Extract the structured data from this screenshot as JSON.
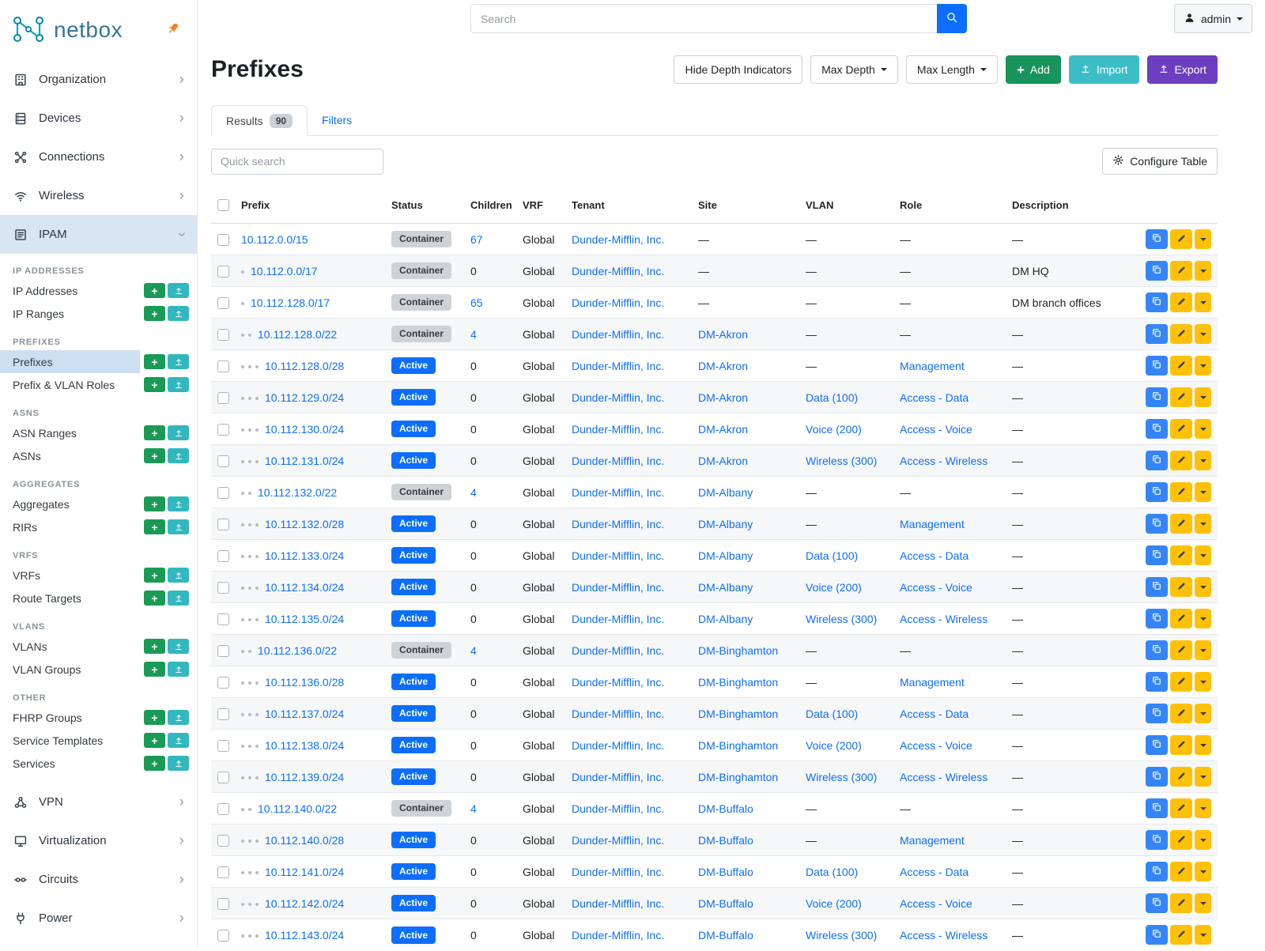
{
  "topbar": {
    "search_placeholder": "Search",
    "user_label": "admin"
  },
  "sidebar": {
    "brand": "netbox",
    "nav_top": [
      {
        "label": "Organization",
        "icon": "building-icon"
      },
      {
        "label": "Devices",
        "icon": "rack-icon"
      },
      {
        "label": "Connections",
        "icon": "cable-icon"
      },
      {
        "label": "Wireless",
        "icon": "wifi-icon"
      },
      {
        "label": "IPAM",
        "icon": "ipam-icon",
        "active": true,
        "expanded": true
      }
    ],
    "sections": [
      {
        "header": "IP ADDRESSES",
        "items": [
          {
            "label": "IP Addresses"
          },
          {
            "label": "IP Ranges"
          }
        ]
      },
      {
        "header": "PREFIXES",
        "items": [
          {
            "label": "Prefixes",
            "selected": true
          },
          {
            "label": "Prefix & VLAN Roles"
          }
        ]
      },
      {
        "header": "ASNS",
        "items": [
          {
            "label": "ASN Ranges"
          },
          {
            "label": "ASNs"
          }
        ]
      },
      {
        "header": "AGGREGATES",
        "items": [
          {
            "label": "Aggregates"
          },
          {
            "label": "RIRs"
          }
        ]
      },
      {
        "header": "VRFS",
        "items": [
          {
            "label": "VRFs"
          },
          {
            "label": "Route Targets"
          }
        ]
      },
      {
        "header": "VLANS",
        "items": [
          {
            "label": "VLANs"
          },
          {
            "label": "VLAN Groups"
          }
        ]
      },
      {
        "header": "OTHER",
        "items": [
          {
            "label": "FHRP Groups"
          },
          {
            "label": "Service Templates"
          },
          {
            "label": "Services"
          }
        ]
      }
    ],
    "nav_bottom": [
      {
        "label": "VPN",
        "icon": "vpn-icon"
      },
      {
        "label": "Virtualization",
        "icon": "virtualization-icon"
      },
      {
        "label": "Circuits",
        "icon": "circuits-icon"
      },
      {
        "label": "Power",
        "icon": "power-icon"
      }
    ]
  },
  "page": {
    "title": "Prefixes",
    "actions": {
      "hide_depth": "Hide Depth Indicators",
      "max_depth": "Max Depth",
      "max_length": "Max Length",
      "add": "Add",
      "import": "Import",
      "export": "Export"
    },
    "tabs": {
      "results": "Results",
      "results_count": "90",
      "filters": "Filters"
    },
    "quick_search_placeholder": "Quick search",
    "configure_table": "Configure Table"
  },
  "colors": {
    "accent_blue": "#0d6efd",
    "success_green": "#18935c",
    "info_teal": "#3cbdc6",
    "purple": "#6b3fc0",
    "warning_yellow": "#ffc107",
    "active_nav_bg": "#d8e5f2"
  },
  "table": {
    "columns": [
      "Prefix",
      "Status",
      "Children",
      "VRF",
      "Tenant",
      "Site",
      "VLAN",
      "Role",
      "Description"
    ],
    "empty_value": "—",
    "rows": [
      {
        "depth": 0,
        "prefix": "10.112.0.0/15",
        "status": "Container",
        "children": "67",
        "vrf": "Global",
        "tenant": "Dunder-Mifflin, Inc.",
        "site": "",
        "vlan": "",
        "role": "",
        "description": ""
      },
      {
        "depth": 1,
        "prefix": "10.112.0.0/17",
        "status": "Container",
        "children": "0",
        "vrf": "Global",
        "tenant": "Dunder-Mifflin, Inc.",
        "site": "",
        "vlan": "",
        "role": "",
        "description": "DM HQ"
      },
      {
        "depth": 1,
        "prefix": "10.112.128.0/17",
        "status": "Container",
        "children": "65",
        "vrf": "Global",
        "tenant": "Dunder-Mifflin, Inc.",
        "site": "",
        "vlan": "",
        "role": "",
        "description": "DM branch offices"
      },
      {
        "depth": 2,
        "prefix": "10.112.128.0/22",
        "status": "Container",
        "children": "4",
        "vrf": "Global",
        "tenant": "Dunder-Mifflin, Inc.",
        "site": "DM-Akron",
        "vlan": "",
        "role": "",
        "description": ""
      },
      {
        "depth": 3,
        "prefix": "10.112.128.0/28",
        "status": "Active",
        "children": "0",
        "vrf": "Global",
        "tenant": "Dunder-Mifflin, Inc.",
        "site": "DM-Akron",
        "vlan": "",
        "role": "Management",
        "description": ""
      },
      {
        "depth": 3,
        "prefix": "10.112.129.0/24",
        "status": "Active",
        "children": "0",
        "vrf": "Global",
        "tenant": "Dunder-Mifflin, Inc.",
        "site": "DM-Akron",
        "vlan": "Data (100)",
        "role": "Access - Data",
        "description": ""
      },
      {
        "depth": 3,
        "prefix": "10.112.130.0/24",
        "status": "Active",
        "children": "0",
        "vrf": "Global",
        "tenant": "Dunder-Mifflin, Inc.",
        "site": "DM-Akron",
        "vlan": "Voice (200)",
        "role": "Access - Voice",
        "description": ""
      },
      {
        "depth": 3,
        "prefix": "10.112.131.0/24",
        "status": "Active",
        "children": "0",
        "vrf": "Global",
        "tenant": "Dunder-Mifflin, Inc.",
        "site": "DM-Akron",
        "vlan": "Wireless (300)",
        "role": "Access - Wireless",
        "description": ""
      },
      {
        "depth": 2,
        "prefix": "10.112.132.0/22",
        "status": "Container",
        "children": "4",
        "vrf": "Global",
        "tenant": "Dunder-Mifflin, Inc.",
        "site": "DM-Albany",
        "vlan": "",
        "role": "",
        "description": ""
      },
      {
        "depth": 3,
        "prefix": "10.112.132.0/28",
        "status": "Active",
        "children": "0",
        "vrf": "Global",
        "tenant": "Dunder-Mifflin, Inc.",
        "site": "DM-Albany",
        "vlan": "",
        "role": "Management",
        "description": ""
      },
      {
        "depth": 3,
        "prefix": "10.112.133.0/24",
        "status": "Active",
        "children": "0",
        "vrf": "Global",
        "tenant": "Dunder-Mifflin, Inc.",
        "site": "DM-Albany",
        "vlan": "Data (100)",
        "role": "Access - Data",
        "description": ""
      },
      {
        "depth": 3,
        "prefix": "10.112.134.0/24",
        "status": "Active",
        "children": "0",
        "vrf": "Global",
        "tenant": "Dunder-Mifflin, Inc.",
        "site": "DM-Albany",
        "vlan": "Voice (200)",
        "role": "Access - Voice",
        "description": ""
      },
      {
        "depth": 3,
        "prefix": "10.112.135.0/24",
        "status": "Active",
        "children": "0",
        "vrf": "Global",
        "tenant": "Dunder-Mifflin, Inc.",
        "site": "DM-Albany",
        "vlan": "Wireless (300)",
        "role": "Access - Wireless",
        "description": ""
      },
      {
        "depth": 2,
        "prefix": "10.112.136.0/22",
        "status": "Container",
        "children": "4",
        "vrf": "Global",
        "tenant": "Dunder-Mifflin, Inc.",
        "site": "DM-Binghamton",
        "vlan": "",
        "role": "",
        "description": ""
      },
      {
        "depth": 3,
        "prefix": "10.112.136.0/28",
        "status": "Active",
        "children": "0",
        "vrf": "Global",
        "tenant": "Dunder-Mifflin, Inc.",
        "site": "DM-Binghamton",
        "vlan": "",
        "role": "Management",
        "description": ""
      },
      {
        "depth": 3,
        "prefix": "10.112.137.0/24",
        "status": "Active",
        "children": "0",
        "vrf": "Global",
        "tenant": "Dunder-Mifflin, Inc.",
        "site": "DM-Binghamton",
        "vlan": "Data (100)",
        "role": "Access - Data",
        "description": ""
      },
      {
        "depth": 3,
        "prefix": "10.112.138.0/24",
        "status": "Active",
        "children": "0",
        "vrf": "Global",
        "tenant": "Dunder-Mifflin, Inc.",
        "site": "DM-Binghamton",
        "vlan": "Voice (200)",
        "role": "Access - Voice",
        "description": ""
      },
      {
        "depth": 3,
        "prefix": "10.112.139.0/24",
        "status": "Active",
        "children": "0",
        "vrf": "Global",
        "tenant": "Dunder-Mifflin, Inc.",
        "site": "DM-Binghamton",
        "vlan": "Wireless (300)",
        "role": "Access - Wireless",
        "description": ""
      },
      {
        "depth": 2,
        "prefix": "10.112.140.0/22",
        "status": "Container",
        "children": "4",
        "vrf": "Global",
        "tenant": "Dunder-Mifflin, Inc.",
        "site": "DM-Buffalo",
        "vlan": "",
        "role": "",
        "description": ""
      },
      {
        "depth": 3,
        "prefix": "10.112.140.0/28",
        "status": "Active",
        "children": "0",
        "vrf": "Global",
        "tenant": "Dunder-Mifflin, Inc.",
        "site": "DM-Buffalo",
        "vlan": "",
        "role": "Management",
        "description": ""
      },
      {
        "depth": 3,
        "prefix": "10.112.141.0/24",
        "status": "Active",
        "children": "0",
        "vrf": "Global",
        "tenant": "Dunder-Mifflin, Inc.",
        "site": "DM-Buffalo",
        "vlan": "Data (100)",
        "role": "Access - Data",
        "description": ""
      },
      {
        "depth": 3,
        "prefix": "10.112.142.0/24",
        "status": "Active",
        "children": "0",
        "vrf": "Global",
        "tenant": "Dunder-Mifflin, Inc.",
        "site": "DM-Buffalo",
        "vlan": "Voice (200)",
        "role": "Access - Voice",
        "description": ""
      },
      {
        "depth": 3,
        "prefix": "10.112.143.0/24",
        "status": "Active",
        "children": "0",
        "vrf": "Global",
        "tenant": "Dunder-Mifflin, Inc.",
        "site": "DM-Buffalo",
        "vlan": "Wireless (300)",
        "role": "Access - Wireless",
        "description": ""
      }
    ]
  }
}
